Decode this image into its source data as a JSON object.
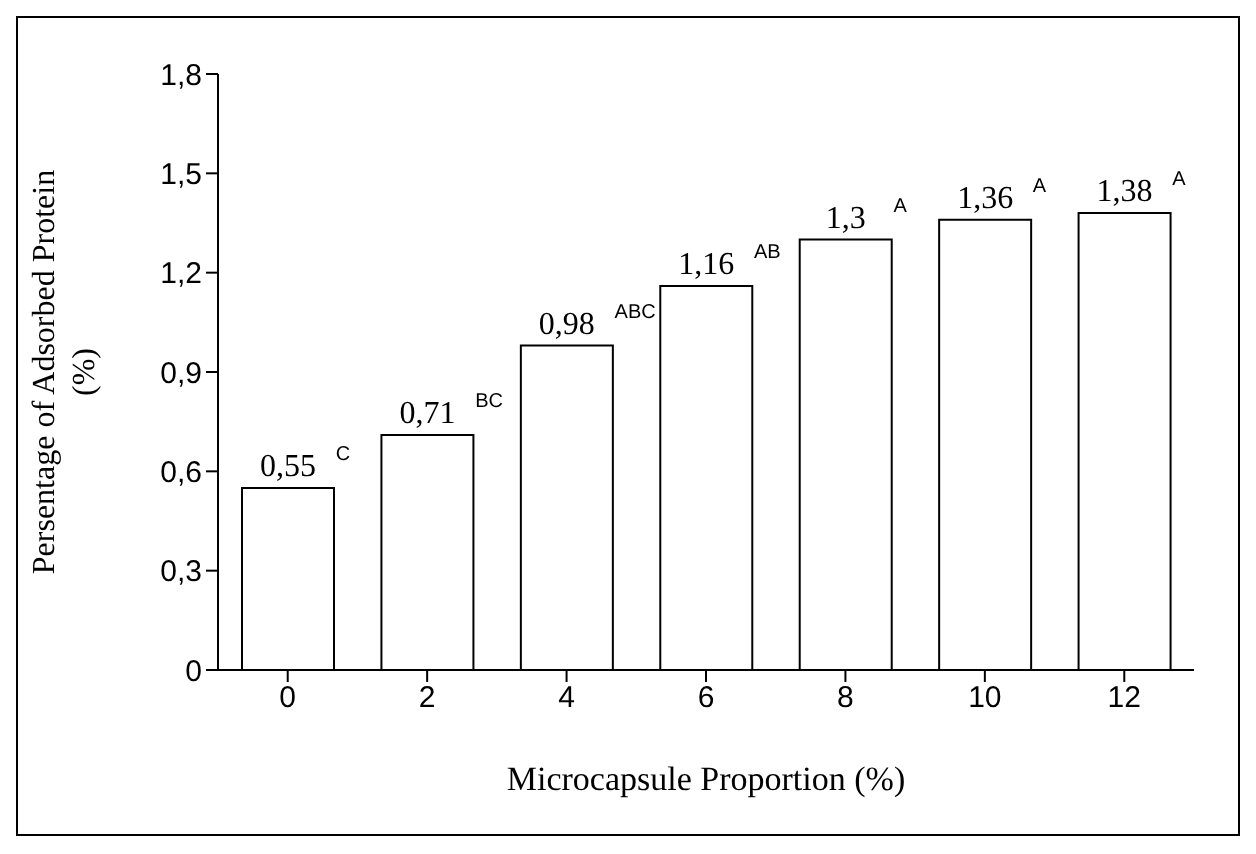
{
  "chart_data": {
    "type": "bar",
    "xlabel": "Microcapsule Proportion (%)",
    "ylabel": "Persentage of Adsorbed Protein (%)",
    "categories": [
      "0",
      "2",
      "4",
      "6",
      "8",
      "10",
      "12"
    ],
    "values": [
      0.55,
      0.71,
      0.98,
      1.16,
      1.3,
      1.36,
      1.38
    ],
    "value_labels": [
      "0,55",
      "0,71",
      "0,98",
      "1,16",
      "1,3",
      "1,36",
      "1,38"
    ],
    "color": "#ffffff",
    "ylim": [
      0,
      1.8
    ],
    "yticks": [
      {
        "value": 0,
        "label": "0"
      },
      {
        "value": 0.3,
        "label": "0,3"
      },
      {
        "value": 0.6,
        "label": "0,6"
      },
      {
        "value": 0.9,
        "label": "0,9"
      },
      {
        "value": 1.2,
        "label": "1,2"
      },
      {
        "value": 1.5,
        "label": "1,5"
      },
      {
        "value": 1.8,
        "label": "1,8"
      }
    ],
    "annotations": [
      {
        "text": "C",
        "x": "0",
        "y": 0.55
      },
      {
        "text": "BC",
        "x": "2",
        "y": 0.71
      },
      {
        "text": "ABC",
        "x": "4",
        "y": 0.98
      },
      {
        "text": "AB",
        "x": "6",
        "y": 1.16
      },
      {
        "text": "A",
        "x": "8",
        "y": 1.3
      },
      {
        "text": "A",
        "x": "10",
        "y": 1.36
      },
      {
        "text": "A",
        "x": "12",
        "y": 1.38
      }
    ],
    "grid": false,
    "legend": false
  }
}
